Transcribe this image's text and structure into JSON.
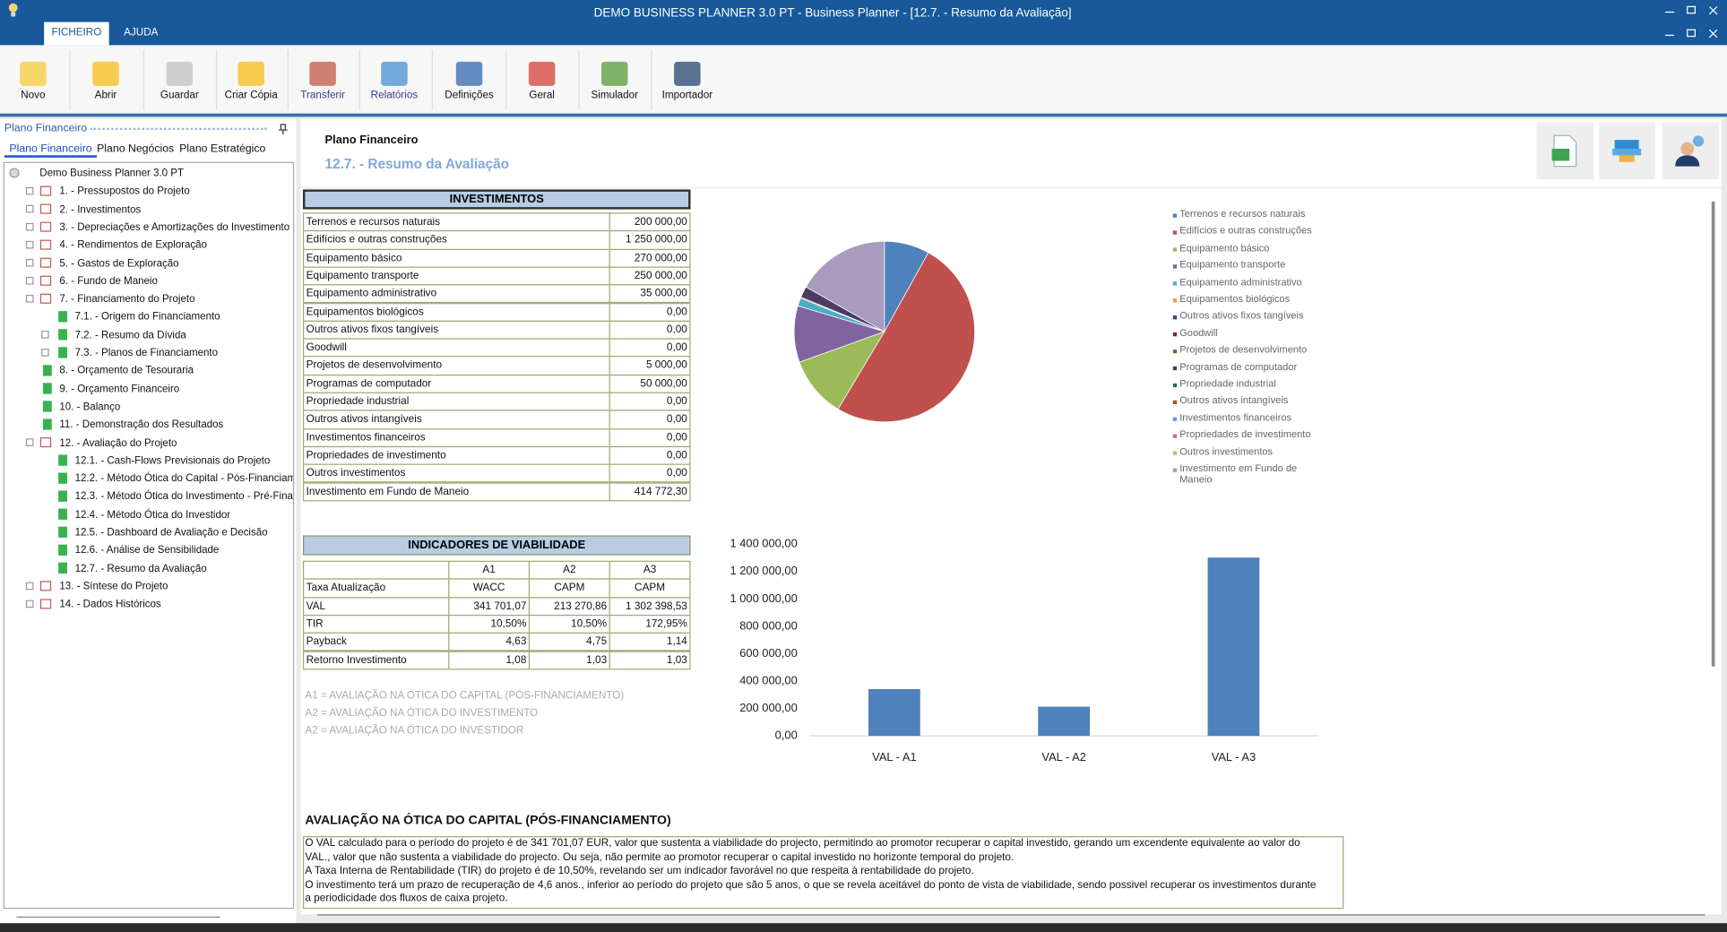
{
  "window": {
    "title": "DEMO BUSINESS PLANNER 3.0 PT - Business Planner - [12.7. - Resumo da Avaliação]",
    "tabs": [
      "FICHEIRO",
      "AJUDA"
    ]
  },
  "toolbar": [
    "Novo",
    "Abrir",
    "Guardar",
    "Criar Cópia",
    "Transferir",
    "Relatórios",
    "Definições",
    "Geral",
    "Simulador",
    "Importador"
  ],
  "sidebar": {
    "title": "Plano Financeiro",
    "tabs": [
      "Plano Financeiro",
      "Plano Negócios",
      "Plano Estratégico"
    ],
    "tree": {
      "label": "Demo Business Planner 3.0 PT",
      "children": [
        {
          "label": "1. - Pressupostos do Projeto",
          "collapsed": true
        },
        {
          "label": "2. - Investimentos",
          "collapsed": true
        },
        {
          "label": "3. - Depreciações e Amortizações do Investimento",
          "collapsed": true
        },
        {
          "label": "4. - Rendimentos de Exploração",
          "collapsed": true
        },
        {
          "label": "5. - Gastos de Exploração",
          "collapsed": true
        },
        {
          "label": "6. - Fundo de Maneio",
          "collapsed": true
        },
        {
          "label": "7. - Financiamento do Projeto",
          "children": [
            {
              "label": "7.1. - Origem do Financiamento"
            },
            {
              "label": "7.2. - Resumo da Dívida",
              "collapsed": true
            },
            {
              "label": "7.3. - Planos de Financiamento",
              "collapsed": true
            }
          ]
        },
        {
          "label": "8. - Orçamento de Tesouraria"
        },
        {
          "label": "9. - Orçamento Financeiro"
        },
        {
          "label": "10. - Balanço"
        },
        {
          "label": "11. - Demonstração dos Resultados"
        },
        {
          "label": "12. - Avaliação do Projeto",
          "children": [
            {
              "label": "12.1. - Cash-Flows Previsionais do Projeto"
            },
            {
              "label": "12.2. - Método Ótica do Capital - Pós-Financiam"
            },
            {
              "label": "12.3. - Método Ótica do Investimento - Pré-Fina"
            },
            {
              "label": "12.4. - Método Ótica do Investidor"
            },
            {
              "label": "12.5. - Dashboard de Avaliação e Decisão"
            },
            {
              "label": "12.6. - Análise de Sensibilidade"
            },
            {
              "label": "12.7. - Resumo da Avaliação"
            }
          ]
        },
        {
          "label": "13. - Síntese do Projeto",
          "collapsed": true
        },
        {
          "label": "14. - Dados Históricos",
          "collapsed": true
        }
      ]
    }
  },
  "content": {
    "breadcrumb": "Plano Financeiro",
    "title": "12.7. - Resumo da Avaliação",
    "investments": {
      "header": "INVESTIMENTOS",
      "rows": [
        [
          "Terrenos  e recursos naturais",
          "200 000,00"
        ],
        [
          "Edifícios e outras construções",
          "1 250 000,00"
        ],
        [
          "Equipamento básico",
          "270 000,00"
        ],
        [
          "Equipamento transporte",
          "250 000,00"
        ],
        [
          "Equipamento administrativo",
          "35 000,00"
        ],
        [
          "Equipamentos biológicos",
          "0,00"
        ],
        [
          "Outros ativos fixos tangíveis",
          "0,00"
        ],
        [
          "Goodwill",
          "0,00"
        ],
        [
          "Projetos de desenvolvimento",
          "5 000,00"
        ],
        [
          "Programas de computador",
          "50 000,00"
        ],
        [
          "Propriedade industrial",
          "0,00"
        ],
        [
          "Outros ativos intangíveis",
          "0,00"
        ],
        [
          "Investimentos financeiros",
          "0,00"
        ],
        [
          "Propriedades de investimento",
          "0,00"
        ],
        [
          "Outros investimentos",
          "0,00"
        ],
        [
          "Investimento em Fundo de Maneio",
          "414 772,30"
        ]
      ]
    },
    "indicators": {
      "header": "INDICADORES DE VIABILIDADE",
      "columns": [
        "A1",
        "A2",
        "A3"
      ],
      "rows": [
        [
          "Taxa Atualização",
          "WACC",
          "CAPM",
          "CAPM"
        ],
        [
          "VAL",
          "341 701,07",
          "213 270,86",
          "1 302 398,53"
        ],
        [
          "TIR",
          "10,50%",
          "10,50%",
          "172,95%"
        ],
        [
          "Payback",
          "4,63",
          "4,75",
          "1,14"
        ],
        [
          "Retorno Investimento",
          "1,08",
          "1,03",
          "1,03"
        ]
      ]
    },
    "notes": [
      "A1 = AVALIAÇÃO NA ÓTICA DO CAPITAL (PÓS-FINANCIAMENTO)",
      "A2 = AVALIAÇÃO NA ÓTICA DO INVESTIMENTO",
      "A2 = AVALIAÇÃO NA ÓTICA DO INVESTIDOR"
    ],
    "evaluation": {
      "title": "AVALIAÇÃO NA ÓTICA DO CAPITAL (PÓS-FINANCIAMENTO)",
      "lines": [
        "O VAL calculado para o período do projeto é de 341 701,07 EUR, valor que sustenta a viabilidade do projecto, permitindo ao promotor recuperar o capital investido, gerando um excendente equivalente ao valor do",
        "VAL., valor que não sustenta a viabilidade do projecto. Ou seja, não permite ao promotor recuperar o capital investido no horizonte temporal do projeto.",
        "A Taxa Interna de Rentabilidade (TIR) do projeto é de 10,50%, revelando ser um indicador favorável no que respeita à rentabilidade do projeto.",
        "O investimento terá um prazo de recuperação de 4,6 anos., inferior ao período do projeto que são 5 anos, o que se revela aceitável do ponto de vista de viabilidade, sendo possivel recuperar os investimentos durante",
        "a periodicidade dos fluxos de caixa projeto."
      ]
    }
  },
  "chart_data": [
    {
      "type": "pie",
      "categories": [
        "Terrenos  e recursos naturais",
        "Edifícios e outras construções",
        "Equipamento básico",
        "Equipamento transporte",
        "Equipamento administrativo",
        "Equipamentos biológicos",
        "Outros ativos fixos tangíveis",
        "Goodwill",
        "Projetos de desenvolvimento",
        "Programas de computador",
        "Propriedade industrial",
        "Outros ativos intangíveis",
        "Investimentos financeiros",
        "Propriedades de investimento",
        "Outros investimentos",
        "Investimento em Fundo de Maneio"
      ],
      "values": [
        200000,
        1250000,
        270000,
        250000,
        35000,
        0,
        0,
        0,
        5000,
        50000,
        0,
        0,
        0,
        0,
        0,
        414772.3
      ],
      "colors": [
        "#4f81bd",
        "#c0504d",
        "#9bbb59",
        "#8064a2",
        "#4bacc6",
        "#f79646",
        "#2c4d75",
        "#772c2a",
        "#5f7530",
        "#4d3b62",
        "#276a7c",
        "#b65708",
        "#729aca",
        "#cd7371",
        "#afc97a",
        "#a99bbd"
      ],
      "legend": "right"
    },
    {
      "type": "bar",
      "categories": [
        "VAL - A1",
        "VAL - A2",
        "VAL - A3"
      ],
      "values": [
        341701.07,
        213270.86,
        1302398.53
      ],
      "color": "#4f81bd",
      "ylim": [
        0,
        1400000
      ],
      "yticks": [
        {
          "value": 0,
          "label": "0,00"
        },
        {
          "value": 200000,
          "label": "200 000,00"
        },
        {
          "value": 400000,
          "label": "400 000,00"
        },
        {
          "value": 600000,
          "label": "600 000,00"
        },
        {
          "value": 800000,
          "label": "800 000,00"
        },
        {
          "value": 1000000,
          "label": "1 000 000,00"
        },
        {
          "value": 1200000,
          "label": "1 200 000,00"
        },
        {
          "value": 1400000,
          "label": "1 400 000,00"
        }
      ],
      "grid": false
    }
  ]
}
